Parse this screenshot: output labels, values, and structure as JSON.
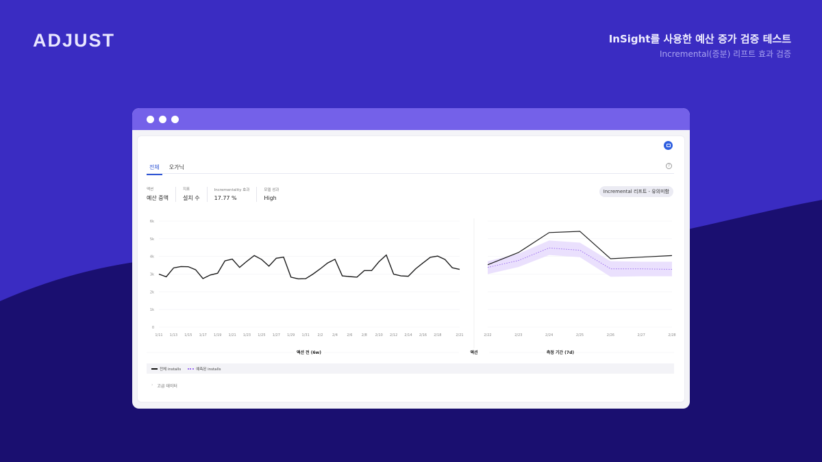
{
  "brand": {
    "logo": "ADJUST"
  },
  "header": {
    "title": "InSight를 사용한 예산 증가 검증 테스트",
    "subtitle": "Incremental(증분) 리프트 효과 검증"
  },
  "colors": {
    "background": "#3a2cc2",
    "wave": "#1a0f70",
    "titlebar": "#7461e9",
    "accent": "#2f55d4",
    "predicted": "#9b6cf0",
    "band": "#e6dbfd"
  },
  "tabs": [
    {
      "label": "전체",
      "active": true
    },
    {
      "label": "오가닉",
      "active": false
    }
  ],
  "icons": {
    "chat": "chat-icon",
    "help": "help-circle-icon",
    "chevron": "chevron-right-icon"
  },
  "metrics": [
    {
      "label": "액션",
      "value": "예산 증액"
    },
    {
      "label": "지표",
      "value": "설치 수"
    },
    {
      "label": "Incrementality 효과",
      "value": "17.77 %"
    },
    {
      "label": "모델 성과",
      "value": "High"
    }
  ],
  "badge": "Incremental 리프트 - 유의미함",
  "sections": {
    "before": "액션 전 (6w)",
    "action": "액션",
    "after": "측정 기간 (7d)"
  },
  "legend": {
    "actual": "전체 installs",
    "predicted": "예측된 installs"
  },
  "advanced": "고급 데이터",
  "chart_data": [
    {
      "type": "line",
      "y_ticks": [
        "0",
        "1k",
        "2k",
        "3k",
        "4k",
        "5k",
        "6k"
      ],
      "ylim": [
        0,
        6000
      ],
      "grid": true,
      "x_tick_labels": [
        "1/11",
        "1/13",
        "1/15",
        "1/17",
        "1/19",
        "1/21",
        "1/23",
        "1/25",
        "1/27",
        "1/29",
        "1/31",
        "2/2",
        "2/4",
        "2/6",
        "2/8",
        "2/10",
        "2/12",
        "2/14",
        "2/16",
        "2/18",
        "2/21"
      ],
      "x": [
        "1/11",
        "1/12",
        "1/13",
        "1/14",
        "1/15",
        "1/16",
        "1/17",
        "1/18",
        "1/19",
        "1/20",
        "1/21",
        "1/22",
        "1/23",
        "1/24",
        "1/25",
        "1/26",
        "1/27",
        "1/28",
        "1/29",
        "1/30",
        "1/31",
        "2/1",
        "2/2",
        "2/3",
        "2/4",
        "2/5",
        "2/6",
        "2/7",
        "2/8",
        "2/9",
        "2/10",
        "2/11",
        "2/12",
        "2/13",
        "2/14",
        "2/15",
        "2/16",
        "2/17",
        "2/18",
        "2/19",
        "2/20",
        "2/21"
      ],
      "series": [
        {
          "name": "전체 installs",
          "values": [
            3000,
            2850,
            3350,
            3430,
            3420,
            3250,
            2750,
            2950,
            3050,
            3750,
            3850,
            3380,
            3730,
            4050,
            3830,
            3450,
            3900,
            3960,
            2830,
            2730,
            2740,
            3000,
            3300,
            3630,
            3840,
            2900,
            2860,
            2830,
            3200,
            3200,
            3700,
            4080,
            3000,
            2900,
            2880,
            3300,
            3630,
            3950,
            4020,
            3830,
            3360,
            3270
          ]
        }
      ]
    },
    {
      "type": "line",
      "ylim": [
        0,
        6000
      ],
      "grid": true,
      "x": [
        "2/22",
        "2/23",
        "2/24",
        "2/25",
        "2/26",
        "2/27",
        "2/28"
      ],
      "series": [
        {
          "name": "전체 installs",
          "values": [
            3530,
            4220,
            5350,
            5420,
            3870,
            3960,
            4050
          ]
        },
        {
          "name": "예측된 installs",
          "values": [
            3380,
            3770,
            4480,
            4350,
            3300,
            3300,
            3270
          ],
          "lower": [
            3000,
            3400,
            4080,
            3960,
            2850,
            2880,
            2880
          ],
          "upper": [
            3730,
            4150,
            4900,
            4780,
            3730,
            3700,
            3700
          ]
        }
      ]
    }
  ]
}
